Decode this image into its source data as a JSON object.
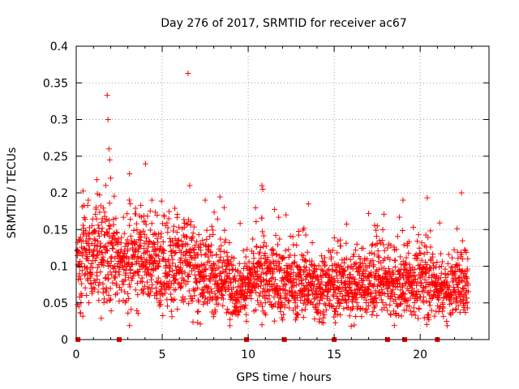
{
  "chart_data": {
    "type": "scatter",
    "title": "Day 276 of 2017, SRMTID for receiver ac67",
    "xlabel": "GPS time / hours",
    "ylabel": "SRMTID / TECUs",
    "xlim": [
      0,
      24
    ],
    "ylim": [
      0,
      0.4
    ],
    "grid": true,
    "marker": "+",
    "color": "#ff0000",
    "xticks": [
      0,
      5,
      10,
      15,
      20
    ],
    "yticks": [
      0,
      0.05,
      0.1,
      0.15,
      0.2,
      0.25,
      0.3,
      0.35,
      0.4
    ],
    "xtick_labels": [
      "0",
      "5",
      "10",
      "15",
      "20"
    ],
    "ytick_labels": [
      "0",
      "0.05",
      "0.1",
      "0.15",
      "0.2",
      "0.25",
      "0.3",
      "0.35",
      "0.4"
    ],
    "zero_markers_x": [
      0.1,
      2.5,
      9.9,
      12.1,
      15.0,
      18.1,
      19.1,
      21.0
    ],
    "series": [
      {
        "name": "SRMTID",
        "profile_x": [
          0,
          0.5,
          1.0,
          1.5,
          2.0,
          2.5,
          3.0,
          3.5,
          4.0,
          4.5,
          5.0,
          5.5,
          6.0,
          6.5,
          7.0,
          7.5,
          8.0,
          8.5,
          9.0,
          9.5,
          10.0,
          10.5,
          11.0,
          11.5,
          12.0,
          12.5,
          13.0,
          13.5,
          14.0,
          14.5,
          15.0,
          15.5,
          16.0,
          16.5,
          17.0,
          17.5,
          18.0,
          18.5,
          19.0,
          19.5,
          20.0,
          20.5,
          21.0,
          21.5,
          22.0,
          22.5,
          22.8
        ],
        "profile_y": [
          0.085,
          0.11,
          0.115,
          0.125,
          0.12,
          0.095,
          0.11,
          0.115,
          0.11,
          0.105,
          0.1,
          0.105,
          0.1,
          0.11,
          0.095,
          0.09,
          0.085,
          0.085,
          0.08,
          0.07,
          0.072,
          0.085,
          0.08,
          0.085,
          0.075,
          0.08,
          0.075,
          0.08,
          0.07,
          0.072,
          0.075,
          0.075,
          0.07,
          0.078,
          0.075,
          0.085,
          0.078,
          0.072,
          0.078,
          0.075,
          0.08,
          0.085,
          0.072,
          0.07,
          0.075,
          0.08,
          0.085
        ],
        "points_per_hour": 110,
        "outliers": [
          [
            1.8,
            0.333
          ],
          [
            1.85,
            0.3
          ],
          [
            1.9,
            0.26
          ],
          [
            1.95,
            0.245
          ],
          [
            2.0,
            0.22
          ],
          [
            6.5,
            0.363
          ],
          [
            3.1,
            0.226
          ],
          [
            10.8,
            0.21
          ],
          [
            6.6,
            0.21
          ],
          [
            10.85,
            0.205
          ],
          [
            1.2,
            0.218
          ],
          [
            0.7,
            0.19
          ],
          [
            22.4,
            0.2
          ],
          [
            19.0,
            0.19
          ],
          [
            13.5,
            0.185
          ],
          [
            4.4,
            0.19
          ],
          [
            8.6,
            0.18
          ],
          [
            17.0,
            0.172
          ],
          [
            12.2,
            0.17
          ],
          [
            7.5,
            0.19
          ]
        ]
      }
    ]
  }
}
